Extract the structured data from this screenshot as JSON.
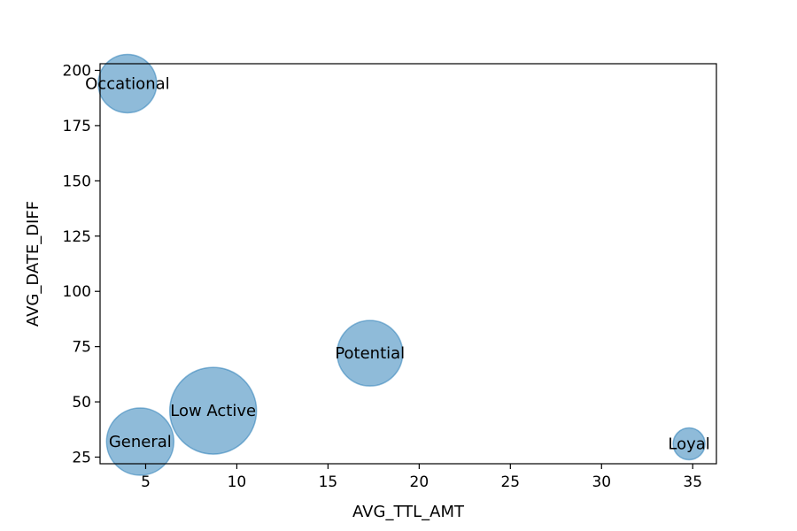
{
  "chart_data": {
    "type": "scatter",
    "title": "",
    "xlabel": "AVG_TTL_AMT",
    "ylabel": "AVG_DATE_DIFF",
    "xlim": [
      2.5,
      36.3
    ],
    "ylim": [
      22,
      203
    ],
    "x_ticks": [
      5,
      10,
      15,
      20,
      25,
      30,
      35
    ],
    "y_ticks": [
      25,
      50,
      75,
      100,
      125,
      150,
      175,
      200
    ],
    "grid": false,
    "bubble_color": "#1f77b4",
    "bubble_alpha": 0.5,
    "points": [
      {
        "label": "Occational",
        "x": 4.0,
        "y": 194,
        "size": 33
      },
      {
        "label": "Low Active",
        "x": 8.7,
        "y": 46,
        "size": 49
      },
      {
        "label": "General",
        "x": 4.7,
        "y": 32,
        "size": 38
      },
      {
        "label": "Potential",
        "x": 17.3,
        "y": 72,
        "size": 37
      },
      {
        "label": "Loyal",
        "x": 34.8,
        "y": 31,
        "size": 18
      }
    ]
  }
}
